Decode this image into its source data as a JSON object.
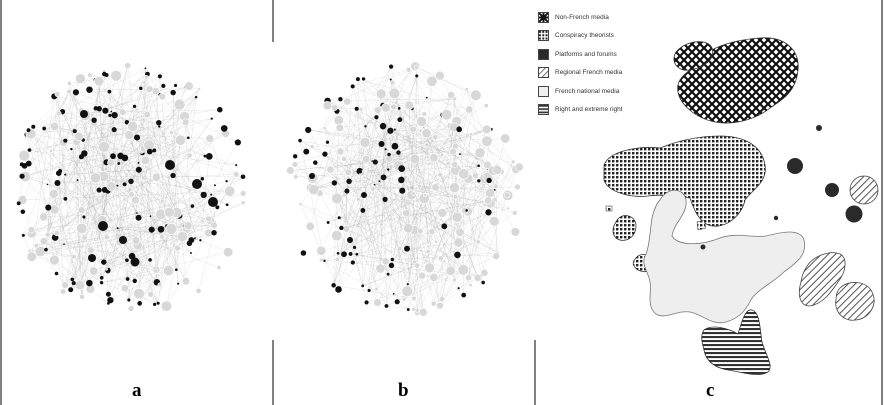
{
  "panels": [
    {
      "id": "a",
      "label": "a"
    },
    {
      "id": "b",
      "label": "b"
    },
    {
      "id": "c",
      "label": "c"
    }
  ],
  "legend": [
    {
      "label": "Non-French media",
      "pattern": "crosshatch-bold",
      "fill": "#222222"
    },
    {
      "label": "Conspiracy theorists",
      "pattern": "grid-dots",
      "fill": "#333333"
    },
    {
      "label": "Platforms and forums",
      "pattern": "solid",
      "fill": "#2a2a2a"
    },
    {
      "label": "Regional French media",
      "pattern": "diagonal",
      "fill": "#777777"
    },
    {
      "label": "French national media",
      "pattern": "solid",
      "fill": "#eeeeee"
    },
    {
      "label": "Right and extreme right",
      "pattern": "horizontal",
      "fill": "#444444"
    }
  ],
  "colors": {
    "node_dark": "#111111",
    "node_light": "#d8d8d8",
    "edge": "#999999",
    "national_fill": "#eeeeee",
    "divider": "#000000"
  }
}
